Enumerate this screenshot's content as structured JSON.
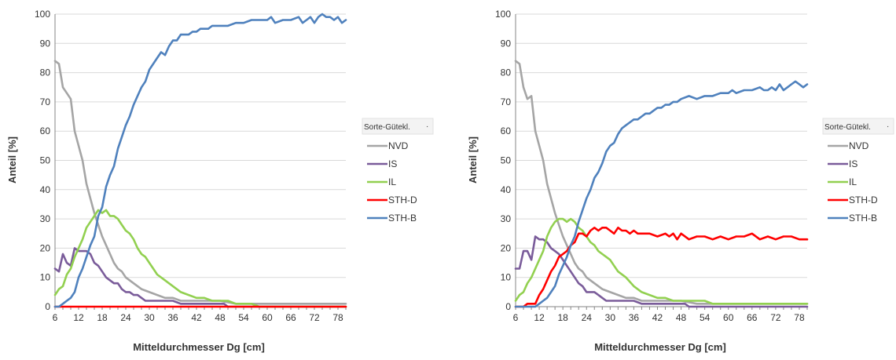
{
  "chart_data": [
    {
      "type": "line",
      "title": "",
      "xlabel": "Mitteldurchmesser Dg [cm]",
      "ylabel": "Anteil [%]",
      "xlim": [
        6,
        80
      ],
      "ylim": [
        0,
        100
      ],
      "xticks": [
        6,
        12,
        18,
        24,
        30,
        36,
        42,
        48,
        54,
        60,
        66,
        72,
        78
      ],
      "yticks": [
        0,
        10,
        20,
        30,
        40,
        50,
        60,
        70,
        80,
        90,
        100
      ],
      "grid": "horizontal",
      "legend": {
        "title": "Sorte-Gütekl.",
        "placement": "right"
      },
      "series": [
        {
          "name": "NVD",
          "color": "#a5a5a5",
          "x": [
            6,
            7,
            8,
            9,
            10,
            11,
            12,
            13,
            14,
            15,
            16,
            17,
            18,
            19,
            20,
            21,
            22,
            23,
            24,
            26,
            28,
            30,
            32,
            34,
            36,
            38,
            40,
            44,
            48,
            52,
            56,
            60,
            66,
            72,
            80
          ],
          "y": [
            84,
            83,
            75,
            73,
            71,
            60,
            55,
            50,
            42,
            37,
            32,
            28,
            24,
            21,
            18,
            15,
            13,
            12,
            10,
            8,
            6,
            5,
            4,
            3,
            3,
            2,
            2,
            2,
            2,
            1,
            1,
            1,
            1,
            1,
            1
          ]
        },
        {
          "name": "IS",
          "color": "#7a5c9a",
          "x": [
            6,
            7,
            8,
            9,
            10,
            11,
            12,
            13,
            14,
            15,
            16,
            17,
            18,
            19,
            20,
            21,
            22,
            23,
            24,
            25,
            26,
            27,
            28,
            29,
            30,
            32,
            34,
            36,
            38,
            40,
            44,
            48,
            49,
            50,
            52,
            56,
            60,
            66,
            72,
            80
          ],
          "y": [
            13,
            12,
            18,
            15,
            14,
            20,
            19,
            19,
            19,
            18,
            15,
            14,
            12,
            10,
            9,
            8,
            8,
            6,
            5,
            5,
            4,
            4,
            3,
            2,
            2,
            2,
            2,
            2,
            1,
            1,
            1,
            1,
            1,
            0,
            0,
            0,
            0,
            0,
            0,
            0
          ]
        },
        {
          "name": "IL",
          "color": "#92d050",
          "x": [
            6,
            7,
            8,
            9,
            10,
            11,
            12,
            13,
            14,
            15,
            16,
            17,
            18,
            19,
            20,
            21,
            22,
            23,
            24,
            25,
            26,
            27,
            28,
            29,
            30,
            31,
            32,
            34,
            36,
            38,
            40,
            42,
            44,
            46,
            48,
            50,
            52,
            54,
            56,
            58,
            60,
            66,
            72,
            80
          ],
          "y": [
            4,
            6,
            7,
            11,
            13,
            17,
            20,
            23,
            27,
            29,
            31,
            33,
            32,
            33,
            31,
            31,
            30,
            28,
            26,
            25,
            23,
            20,
            18,
            17,
            15,
            13,
            11,
            9,
            7,
            5,
            4,
            3,
            3,
            2,
            2,
            2,
            1,
            1,
            1,
            0,
            0,
            0,
            0,
            0
          ]
        },
        {
          "name": "STH-D",
          "color": "#ff0000",
          "x": [
            6,
            20,
            40,
            60,
            80
          ],
          "y": [
            0,
            0,
            0,
            0,
            0
          ]
        },
        {
          "name": "STH-B",
          "color": "#4f81bd",
          "x": [
            6,
            7,
            8,
            9,
            10,
            11,
            12,
            13,
            14,
            15,
            16,
            17,
            18,
            19,
            20,
            21,
            22,
            23,
            24,
            25,
            26,
            27,
            28,
            29,
            30,
            31,
            32,
            33,
            34,
            35,
            36,
            37,
            38,
            39,
            40,
            41,
            42,
            43,
            44,
            45,
            46,
            47,
            48,
            50,
            52,
            54,
            56,
            58,
            60,
            61,
            62,
            64,
            66,
            68,
            69,
            70,
            71,
            72,
            73,
            74,
            75,
            76,
            77,
            78,
            79,
            80
          ],
          "y": [
            0,
            0,
            1,
            2,
            3,
            5,
            10,
            13,
            17,
            21,
            24,
            31,
            34,
            41,
            45,
            48,
            54,
            58,
            62,
            65,
            69,
            72,
            75,
            77,
            81,
            83,
            85,
            87,
            86,
            89,
            91,
            91,
            93,
            93,
            93,
            94,
            94,
            95,
            95,
            95,
            96,
            96,
            96,
            96,
            97,
            97,
            98,
            98,
            98,
            99,
            97,
            98,
            98,
            99,
            97,
            98,
            99,
            97,
            99,
            100,
            99,
            99,
            98,
            99,
            97,
            98
          ]
        }
      ]
    },
    {
      "type": "line",
      "title": "",
      "xlabel": "Mitteldurchmesser Dg [cm]",
      "ylabel": "Anteil [%]",
      "xlim": [
        6,
        80
      ],
      "ylim": [
        0,
        100
      ],
      "xticks": [
        6,
        12,
        18,
        24,
        30,
        36,
        42,
        48,
        54,
        60,
        66,
        72,
        78
      ],
      "yticks": [
        0,
        10,
        20,
        30,
        40,
        50,
        60,
        70,
        80,
        90,
        100
      ],
      "grid": "horizontal",
      "legend": {
        "title": "Sorte-Gütekl.",
        "placement": "right"
      },
      "series": [
        {
          "name": "NVD",
          "color": "#a5a5a5",
          "x": [
            6,
            7,
            8,
            9,
            10,
            11,
            12,
            13,
            14,
            15,
            16,
            17,
            18,
            19,
            20,
            21,
            22,
            23,
            24,
            26,
            28,
            30,
            32,
            34,
            36,
            38,
            40,
            44,
            48,
            52,
            56,
            60,
            66,
            72,
            80
          ],
          "y": [
            84,
            83,
            75,
            71,
            72,
            60,
            55,
            50,
            42,
            37,
            32,
            28,
            24,
            21,
            18,
            15,
            13,
            12,
            10,
            8,
            6,
            5,
            4,
            3,
            3,
            2,
            2,
            2,
            2,
            1,
            1,
            1,
            1,
            1,
            1
          ]
        },
        {
          "name": "IS",
          "color": "#7a5c9a",
          "x": [
            6,
            7,
            8,
            9,
            10,
            11,
            12,
            13,
            14,
            15,
            16,
            17,
            18,
            19,
            20,
            21,
            22,
            23,
            24,
            25,
            26,
            27,
            28,
            29,
            30,
            32,
            34,
            36,
            38,
            40,
            44,
            48,
            49,
            50,
            52,
            56,
            60,
            66,
            72,
            80
          ],
          "y": [
            13,
            13,
            19,
            19,
            16,
            24,
            23,
            23,
            22,
            20,
            19,
            18,
            16,
            14,
            12,
            10,
            8,
            7,
            5,
            5,
            5,
            4,
            3,
            2,
            2,
            2,
            2,
            2,
            1,
            1,
            1,
            1,
            1,
            0,
            0,
            0,
            0,
            0,
            0,
            0
          ]
        },
        {
          "name": "IL",
          "color": "#92d050",
          "x": [
            6,
            7,
            8,
            9,
            10,
            11,
            12,
            13,
            14,
            15,
            16,
            17,
            18,
            19,
            20,
            21,
            22,
            23,
            24,
            25,
            26,
            27,
            28,
            29,
            30,
            31,
            32,
            34,
            36,
            38,
            40,
            42,
            44,
            46,
            48,
            50,
            52,
            54,
            56,
            58,
            60,
            66,
            72,
            80
          ],
          "y": [
            2,
            4,
            5,
            8,
            10,
            13,
            16,
            19,
            24,
            27,
            29,
            30,
            30,
            29,
            30,
            29,
            27,
            26,
            24,
            22,
            21,
            19,
            18,
            17,
            16,
            14,
            12,
            10,
            7,
            5,
            4,
            3,
            3,
            2,
            2,
            2,
            2,
            2,
            1,
            1,
            1,
            1,
            1,
            1
          ]
        },
        {
          "name": "STH-D",
          "color": "#ff0000",
          "x": [
            6,
            7,
            8,
            9,
            10,
            11,
            12,
            13,
            14,
            15,
            16,
            17,
            18,
            19,
            20,
            21,
            22,
            23,
            24,
            25,
            26,
            27,
            28,
            29,
            30,
            31,
            32,
            33,
            34,
            35,
            36,
            37,
            38,
            39,
            40,
            42,
            44,
            45,
            46,
            47,
            48,
            50,
            52,
            54,
            56,
            58,
            60,
            62,
            64,
            66,
            68,
            70,
            72,
            74,
            76,
            78,
            80
          ],
          "y": [
            0,
            0,
            0,
            1,
            1,
            1,
            4,
            6,
            9,
            12,
            14,
            17,
            18,
            19,
            21,
            22,
            25,
            25,
            24,
            26,
            27,
            26,
            27,
            27,
            26,
            25,
            27,
            26,
            26,
            25,
            26,
            25,
            25,
            25,
            25,
            24,
            25,
            24,
            25,
            23,
            25,
            23,
            24,
            24,
            23,
            24,
            23,
            24,
            24,
            25,
            23,
            24,
            23,
            24,
            24,
            23,
            23
          ]
        },
        {
          "name": "STH-B",
          "color": "#4f81bd",
          "x": [
            6,
            7,
            8,
            9,
            10,
            11,
            12,
            13,
            14,
            15,
            16,
            17,
            18,
            19,
            20,
            21,
            22,
            23,
            24,
            25,
            26,
            27,
            28,
            29,
            30,
            31,
            32,
            33,
            34,
            35,
            36,
            37,
            38,
            39,
            40,
            41,
            42,
            43,
            44,
            45,
            46,
            47,
            48,
            50,
            52,
            54,
            56,
            58,
            60,
            61,
            62,
            64,
            66,
            68,
            69,
            70,
            71,
            72,
            73,
            74,
            75,
            76,
            77,
            78,
            79,
            80
          ],
          "y": [
            0,
            0,
            0,
            0,
            0,
            0,
            1,
            2,
            3,
            5,
            7,
            11,
            14,
            17,
            21,
            24,
            29,
            33,
            37,
            40,
            44,
            46,
            49,
            53,
            55,
            56,
            59,
            61,
            62,
            63,
            64,
            64,
            65,
            66,
            66,
            67,
            68,
            68,
            69,
            69,
            70,
            70,
            71,
            72,
            71,
            72,
            72,
            73,
            73,
            74,
            73,
            74,
            74,
            75,
            74,
            74,
            75,
            74,
            76,
            74,
            75,
            76,
            77,
            76,
            75,
            76
          ]
        }
      ]
    }
  ]
}
